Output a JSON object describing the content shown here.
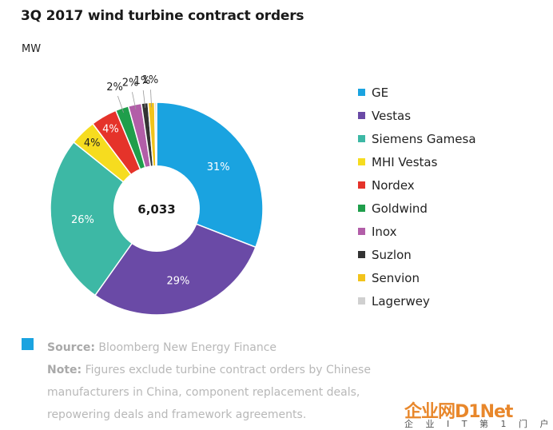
{
  "title": "3Q 2017 wind turbine contract orders",
  "unit": "MW",
  "chart_data": {
    "type": "pie",
    "style": "donut",
    "total_label": "6,033",
    "legend_placement": "right",
    "series": [
      {
        "name": "GE",
        "value": 31,
        "label": "31%",
        "color": "#1aa3e0"
      },
      {
        "name": "Vestas",
        "value": 29,
        "label": "29%",
        "color": "#6a4aa6"
      },
      {
        "name": "Siemens Gamesa",
        "value": 26,
        "label": "26%",
        "color": "#3db8a5"
      },
      {
        "name": "MHI Vestas",
        "value": 4,
        "label": "4%",
        "color": "#f6dc1f"
      },
      {
        "name": "Nordex",
        "value": 4,
        "label": "4%",
        "color": "#e5332a"
      },
      {
        "name": "Goldwind",
        "value": 2,
        "label": "2%",
        "color": "#1f9e4b"
      },
      {
        "name": "Inox",
        "value": 2,
        "label": "2%",
        "color": "#b25ea8"
      },
      {
        "name": "Suzlon",
        "value": 1,
        "label": "1%",
        "color": "#333333"
      },
      {
        "name": "Senvion",
        "value": 1,
        "label": "1%",
        "color": "#f2c31b"
      },
      {
        "name": "Lagerwey",
        "value": 0.3,
        "label": "",
        "color": "#d0d0d0"
      }
    ]
  },
  "footer": {
    "source_label": "Source:",
    "source_text": " Bloomberg New Energy Finance",
    "note_label": "Note:",
    "note_text": " Figures exclude turbine contract orders by Chinese manufacturers in China, component replacement deals, repowering deals and framework agreements."
  },
  "watermark": {
    "main": "企业网D1Net",
    "sub": "企 业 I T 第 1 门 户"
  }
}
